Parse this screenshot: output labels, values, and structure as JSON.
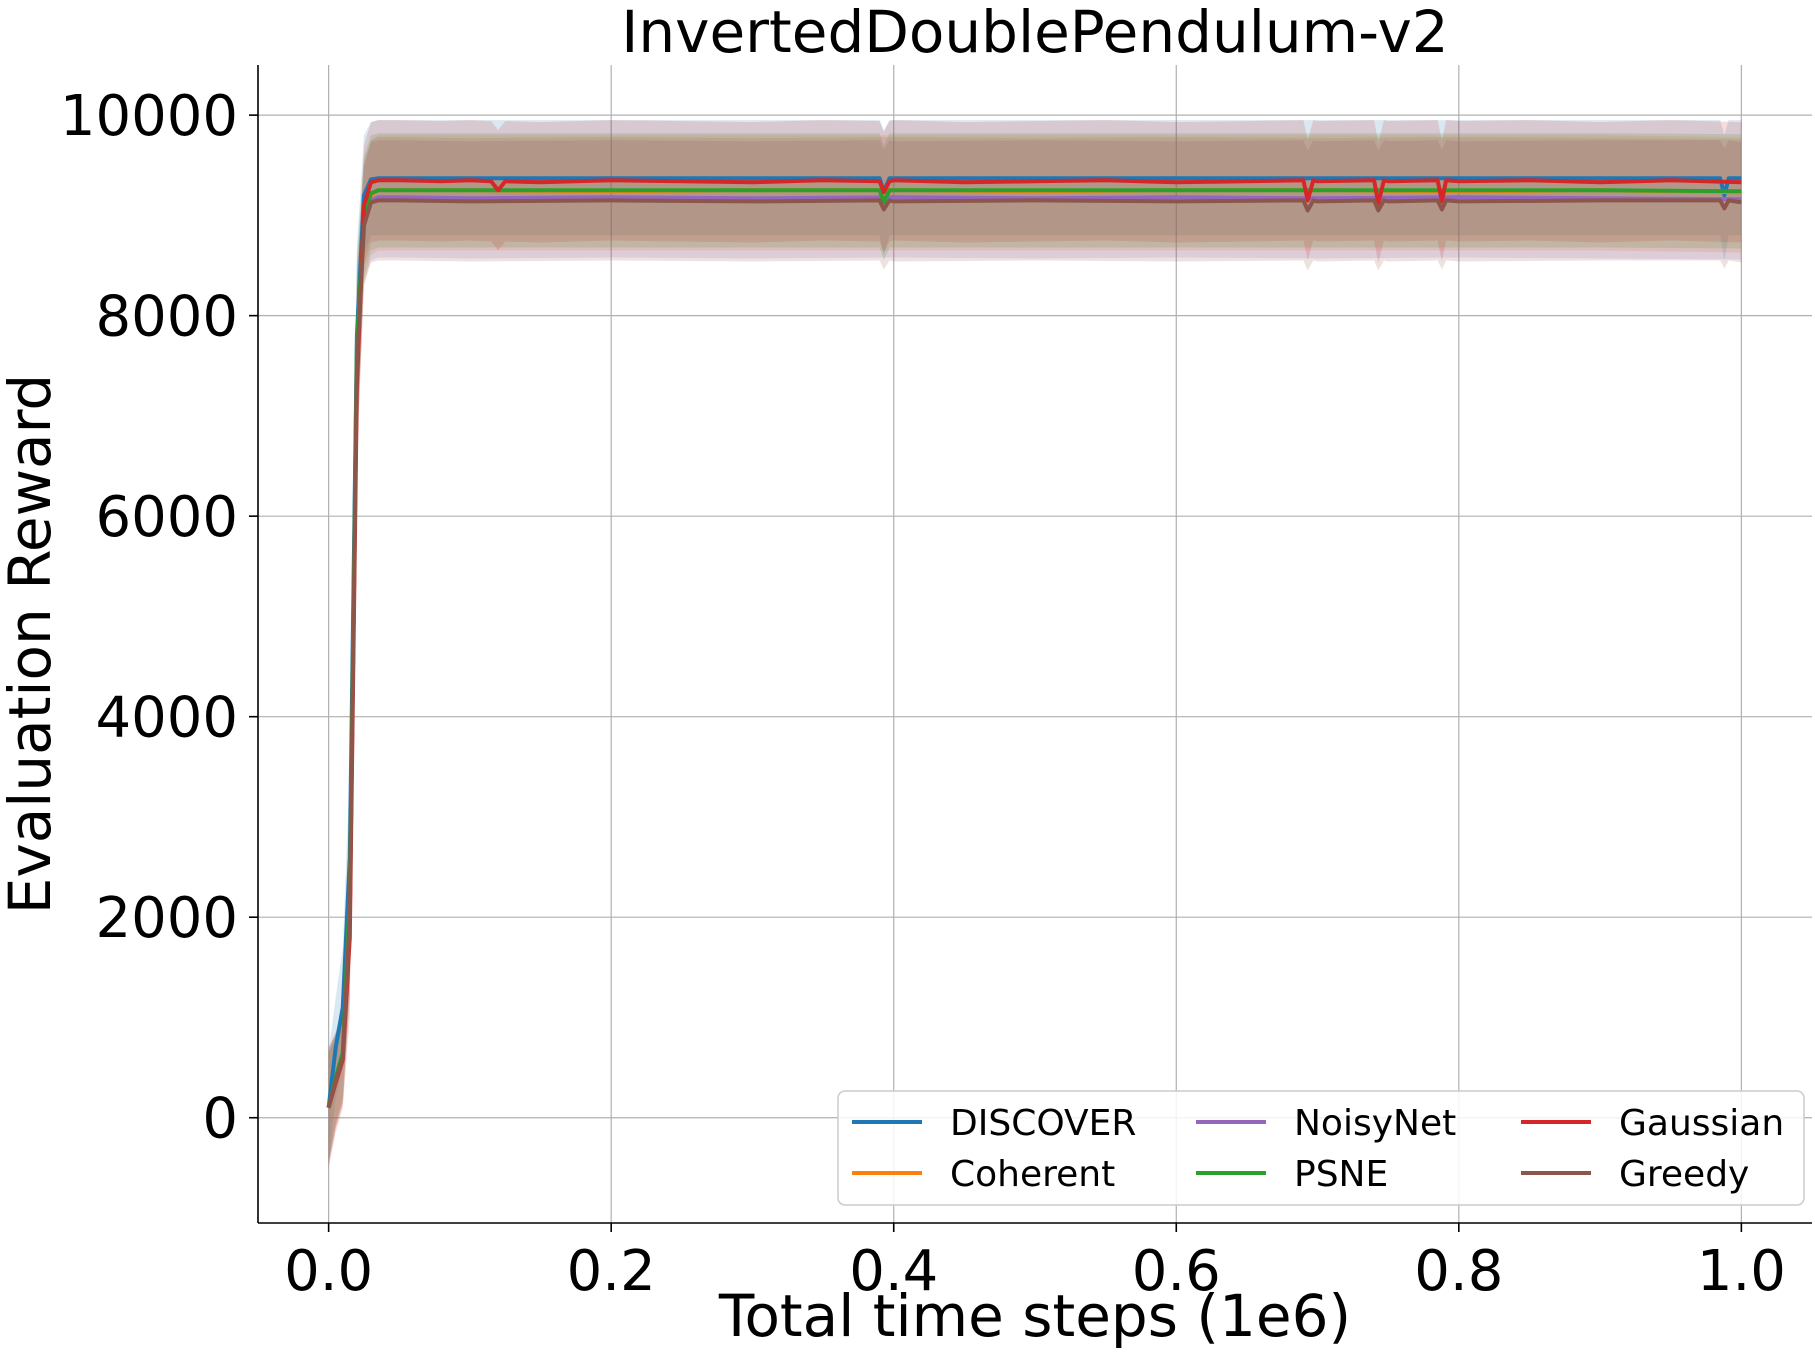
{
  "chart_data": {
    "type": "line",
    "title": "InvertedDoublePendulum-v2",
    "xlabel": "Total time steps (1e6)",
    "ylabel": "Evaluation Reward",
    "xlim": [
      -0.05,
      1.05
    ],
    "ylim": [
      -1050,
      10500
    ],
    "x_ticks": [
      0.0,
      0.2,
      0.4,
      0.6,
      0.8,
      1.0
    ],
    "x_tick_labels": [
      "0.0",
      "0.2",
      "0.4",
      "0.6",
      "0.8",
      "1.0"
    ],
    "y_ticks": [
      0,
      2000,
      4000,
      6000,
      8000,
      10000
    ],
    "y_tick_labels": [
      "0",
      "2000",
      "4000",
      "6000",
      "8000",
      "10000"
    ],
    "grid": true,
    "legend": {
      "placement": "lower-right",
      "columns": 3
    },
    "series": [
      {
        "name": "DISCOVER",
        "color": "#1f77b4",
        "x": [
          0.0,
          0.005,
          0.01,
          0.015,
          0.02,
          0.025,
          0.03,
          0.035,
          0.05,
          0.1,
          0.2,
          0.3,
          0.39,
          0.393,
          0.397,
          0.4,
          0.5,
          0.6,
          0.7,
          0.8,
          0.9,
          0.985,
          0.988,
          0.991,
          1.0
        ],
        "y": [
          100,
          700,
          1100,
          2600,
          7800,
          9200,
          9360,
          9370,
          9370,
          9370,
          9370,
          9370,
          9370,
          9240,
          9370,
          9370,
          9370,
          9370,
          9370,
          9370,
          9370,
          9370,
          9200,
          9370,
          9370
        ],
        "lower": [
          -450,
          200,
          500,
          1700,
          6900,
          8600,
          8800,
          8800,
          8800,
          8800,
          8800,
          8800,
          8800,
          8600,
          8800,
          8800,
          8800,
          8800,
          8800,
          8800,
          8800,
          8800,
          8550,
          8800,
          8800
        ],
        "upper": [
          650,
          1200,
          1700,
          3500,
          8700,
          9800,
          9930,
          9950,
          9950,
          9950,
          9950,
          9950,
          9950,
          9850,
          9950,
          9950,
          9950,
          9950,
          9950,
          9950,
          9950,
          9950,
          9800,
          9950,
          9950
        ]
      },
      {
        "name": "Coherent",
        "color": "#ff7f0e",
        "x": [
          0.0,
          0.005,
          0.01,
          0.015,
          0.02,
          0.025,
          0.03,
          0.035,
          0.05,
          0.1,
          0.2,
          0.3,
          0.4,
          0.5,
          0.6,
          0.7,
          0.8,
          0.9,
          1.0
        ],
        "y": [
          100,
          350,
          600,
          2000,
          7500,
          8900,
          9200,
          9250,
          9250,
          9250,
          9240,
          9250,
          9250,
          9240,
          9250,
          9250,
          9240,
          9250,
          9230
        ],
        "lower": [
          -450,
          -100,
          150,
          1200,
          6600,
          8300,
          8600,
          8650,
          8650,
          8650,
          8650,
          8650,
          8650,
          8650,
          8650,
          8650,
          8650,
          8650,
          8630
        ],
        "upper": [
          650,
          800,
          1050,
          2800,
          8400,
          9500,
          9750,
          9800,
          9800,
          9800,
          9800,
          9800,
          9800,
          9800,
          9800,
          9800,
          9800,
          9800,
          9780
        ]
      },
      {
        "name": "NoisyNet",
        "color": "#9467bd",
        "x": [
          0.0,
          0.005,
          0.01,
          0.015,
          0.02,
          0.025,
          0.03,
          0.035,
          0.05,
          0.1,
          0.2,
          0.3,
          0.4,
          0.5,
          0.6,
          0.7,
          0.8,
          0.9,
          1.0
        ],
        "y": [
          100,
          380,
          620,
          2100,
          7600,
          8950,
          9150,
          9180,
          9180,
          9170,
          9180,
          9170,
          9180,
          9170,
          9180,
          9170,
          9180,
          9170,
          9160
        ],
        "lower": [
          -450,
          -80,
          170,
          1300,
          6700,
          8350,
          8550,
          8580,
          8580,
          8570,
          8580,
          8570,
          8580,
          8570,
          8580,
          8570,
          8580,
          8570,
          8560
        ],
        "upper": [
          650,
          830,
          1070,
          2900,
          8500,
          9550,
          9750,
          9780,
          9780,
          9770,
          9780,
          9770,
          9780,
          9770,
          9780,
          9770,
          9780,
          9770,
          9760
        ]
      },
      {
        "name": "PSNE",
        "color": "#2ca02c",
        "x": [
          0.0,
          0.005,
          0.01,
          0.015,
          0.02,
          0.025,
          0.03,
          0.035,
          0.05,
          0.1,
          0.2,
          0.3,
          0.39,
          0.393,
          0.397,
          0.4,
          0.5,
          0.6,
          0.7,
          0.8,
          0.9,
          1.0
        ],
        "y": [
          100,
          400,
          650,
          2200,
          7700,
          9000,
          9220,
          9250,
          9250,
          9250,
          9250,
          9250,
          9250,
          9130,
          9250,
          9250,
          9250,
          9250,
          9250,
          9250,
          9250,
          9240
        ],
        "lower": [
          -450,
          -50,
          200,
          1400,
          6800,
          8400,
          8650,
          8680,
          8680,
          8680,
          8680,
          8680,
          8680,
          8550,
          8680,
          8680,
          8680,
          8680,
          8680,
          8680,
          8680,
          8670
        ],
        "upper": [
          650,
          850,
          1100,
          3000,
          8600,
          9600,
          9800,
          9820,
          9820,
          9820,
          9820,
          9820,
          9820,
          9700,
          9820,
          9820,
          9820,
          9820,
          9820,
          9820,
          9820,
          9810
        ]
      },
      {
        "name": "Gaussian",
        "color": "#d62728",
        "x": [
          0.0,
          0.005,
          0.01,
          0.015,
          0.02,
          0.025,
          0.03,
          0.035,
          0.05,
          0.08,
          0.1,
          0.115,
          0.12,
          0.125,
          0.15,
          0.2,
          0.25,
          0.3,
          0.35,
          0.39,
          0.393,
          0.397,
          0.4,
          0.45,
          0.5,
          0.55,
          0.6,
          0.65,
          0.69,
          0.693,
          0.697,
          0.7,
          0.74,
          0.743,
          0.747,
          0.75,
          0.785,
          0.788,
          0.791,
          0.8,
          0.85,
          0.9,
          0.95,
          1.0
        ],
        "y": [
          100,
          350,
          580,
          1800,
          7300,
          9100,
          9330,
          9350,
          9350,
          9340,
          9350,
          9340,
          9250,
          9340,
          9330,
          9350,
          9340,
          9330,
          9350,
          9340,
          9230,
          9340,
          9350,
          9330,
          9340,
          9350,
          9330,
          9340,
          9350,
          9150,
          9350,
          9340,
          9350,
          9120,
          9350,
          9340,
          9350,
          9140,
          9350,
          9340,
          9350,
          9330,
          9350,
          9330
        ],
        "lower": [
          -500,
          -150,
          100,
          1000,
          6400,
          8500,
          8730,
          8750,
          8750,
          8740,
          8750,
          8740,
          8650,
          8740,
          8730,
          8750,
          8740,
          8730,
          8750,
          8740,
          8630,
          8740,
          8750,
          8730,
          8740,
          8750,
          8730,
          8740,
          8750,
          8550,
          8750,
          8740,
          8750,
          8520,
          8750,
          8740,
          8750,
          8540,
          8750,
          8740,
          8750,
          8730,
          8750,
          8730
        ],
        "upper": [
          700,
          850,
          1060,
          2600,
          8200,
          9700,
          9930,
          9950,
          9950,
          9940,
          9950,
          9940,
          9850,
          9940,
          9930,
          9950,
          9940,
          9930,
          9950,
          9940,
          9830,
          9940,
          9950,
          9930,
          9940,
          9950,
          9930,
          9940,
          9950,
          9750,
          9950,
          9940,
          9950,
          9720,
          9950,
          9940,
          9950,
          9740,
          9950,
          9940,
          9950,
          9930,
          9950,
          9930
        ]
      },
      {
        "name": "Greedy",
        "color": "#8c564b",
        "x": [
          0.0,
          0.005,
          0.01,
          0.015,
          0.02,
          0.025,
          0.03,
          0.035,
          0.05,
          0.1,
          0.2,
          0.3,
          0.39,
          0.393,
          0.397,
          0.4,
          0.5,
          0.6,
          0.69,
          0.693,
          0.697,
          0.7,
          0.74,
          0.743,
          0.747,
          0.75,
          0.785,
          0.788,
          0.791,
          0.8,
          0.9,
          0.985,
          0.988,
          0.991,
          1.0
        ],
        "y": [
          100,
          370,
          600,
          2000,
          7500,
          8900,
          9130,
          9150,
          9150,
          9140,
          9150,
          9140,
          9150,
          9060,
          9150,
          9140,
          9150,
          9140,
          9150,
          9050,
          9150,
          9140,
          9150,
          9050,
          9150,
          9140,
          9150,
          9060,
          9150,
          9140,
          9150,
          9150,
          9070,
          9150,
          9130
        ],
        "lower": [
          -500,
          -100,
          130,
          1200,
          6600,
          8300,
          8530,
          8550,
          8550,
          8540,
          8550,
          8540,
          8550,
          8460,
          8550,
          8540,
          8550,
          8540,
          8550,
          8450,
          8550,
          8540,
          8550,
          8450,
          8550,
          8540,
          8550,
          8460,
          8550,
          8540,
          8550,
          8550,
          8470,
          8550,
          8530
        ],
        "upper": [
          700,
          840,
          1070,
          2800,
          8400,
          9500,
          9730,
          9750,
          9750,
          9740,
          9750,
          9740,
          9750,
          9660,
          9750,
          9740,
          9750,
          9740,
          9750,
          9650,
          9750,
          9740,
          9750,
          9650,
          9750,
          9740,
          9750,
          9660,
          9750,
          9740,
          9750,
          9750,
          9670,
          9750,
          9730
        ]
      }
    ]
  }
}
